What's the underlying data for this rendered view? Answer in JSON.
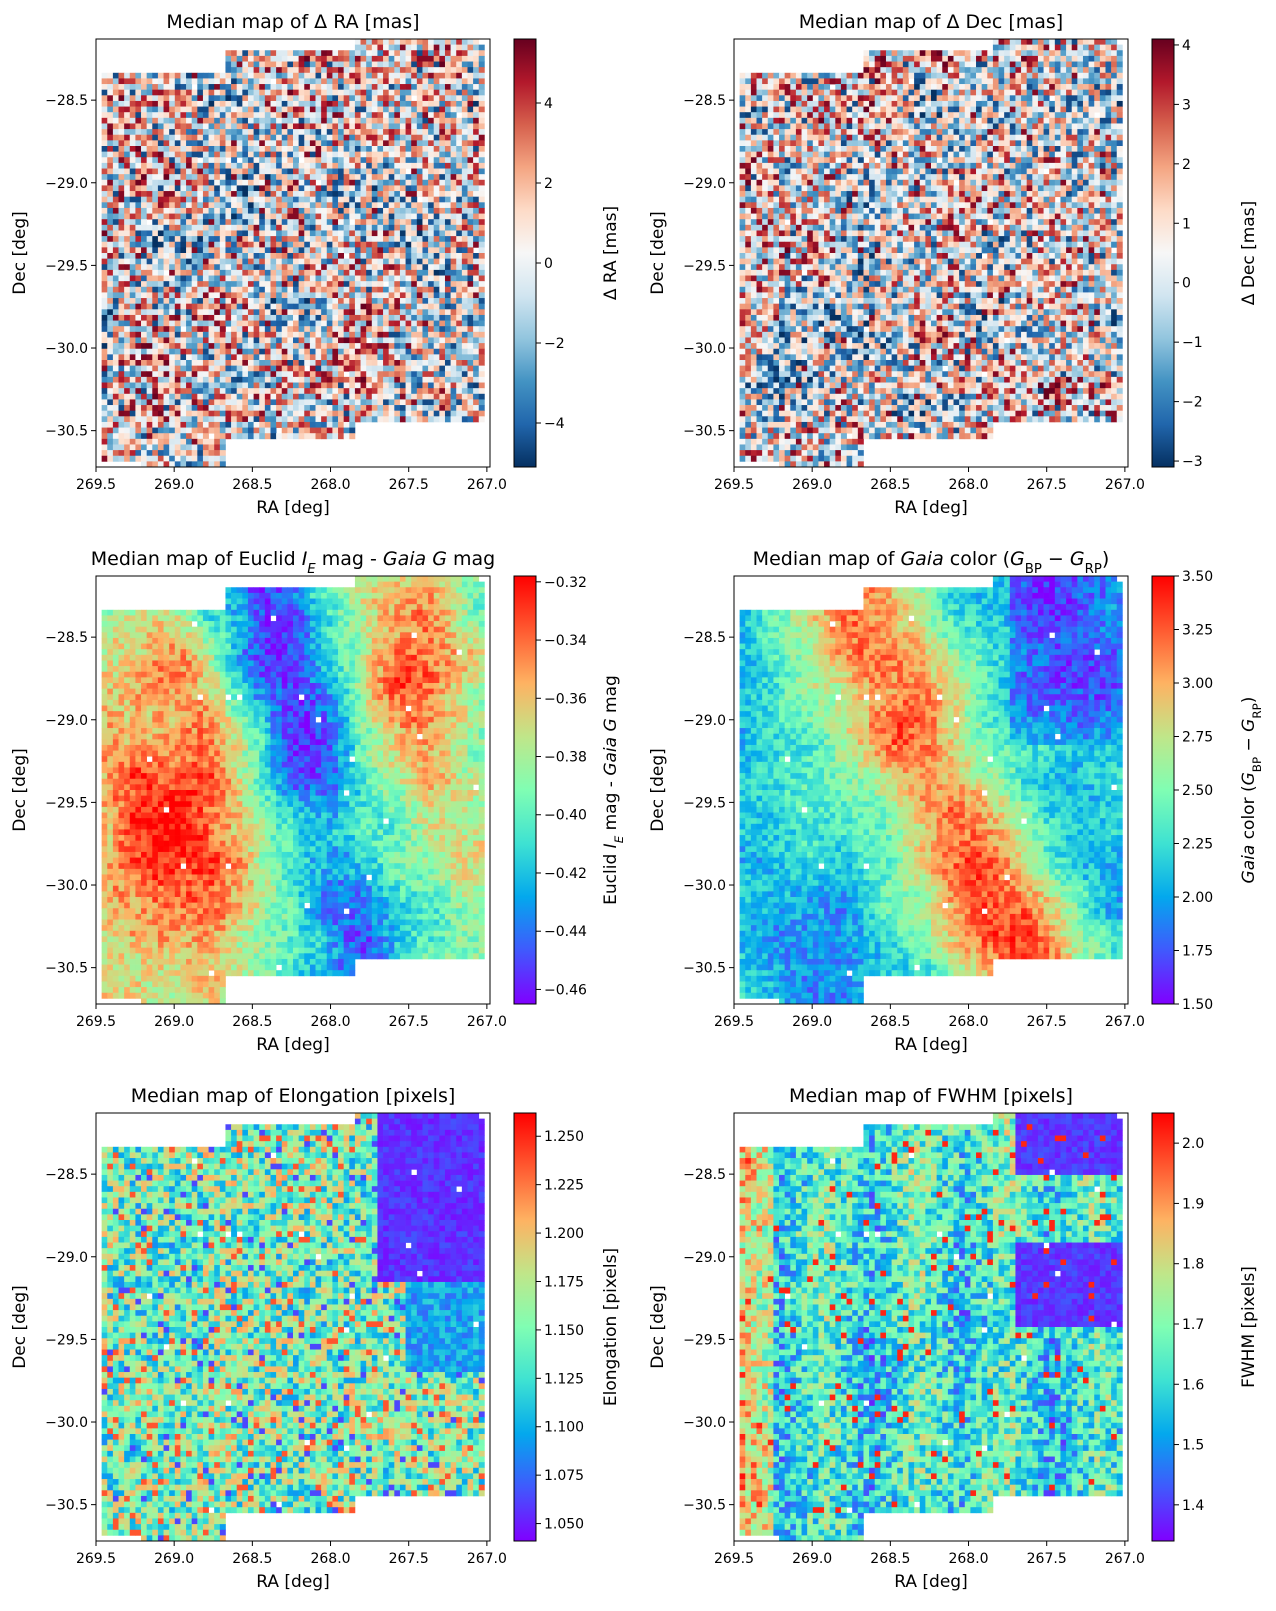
{
  "panels": [
    {
      "id": "dra",
      "title": [
        "Median map of Δ RA [mas]"
      ],
      "cbar_label": [
        "Δ RA [mas]"
      ],
      "cmap": "RdBu_r",
      "vmin": -5.1,
      "vmax": 5.6,
      "cbar_ticks": [
        -4,
        -2,
        0,
        2,
        4
      ],
      "cbar_tick_labels": [
        "−4",
        "−2",
        "0",
        "2",
        "4"
      ],
      "pattern": "noise"
    },
    {
      "id": "ddec",
      "title": [
        "Median map of Δ Dec [mas]"
      ],
      "cbar_label": [
        "Δ Dec [mas]"
      ],
      "cmap": "RdBu_r",
      "vmin": -3.1,
      "vmax": 4.1,
      "cbar_ticks": [
        -3,
        -2,
        -1,
        0,
        1,
        2,
        3,
        4
      ],
      "cbar_tick_labels": [
        "−3",
        "−2",
        "−1",
        "0",
        "1",
        "2",
        "3",
        "4"
      ],
      "pattern": "noise"
    },
    {
      "id": "mag",
      "title": [
        {
          "t": "Median map of Euclid "
        },
        {
          "t": "I",
          "i": true
        },
        {
          "t": "E",
          "i": true,
          "sub": true
        },
        {
          "t": " mag - "
        },
        {
          "t": "Gaia G",
          "i": true
        },
        {
          "t": " mag"
        }
      ],
      "cbar_label": [
        {
          "t": "Euclid "
        },
        {
          "t": "I",
          "i": true
        },
        {
          "t": "E",
          "i": true,
          "sub": true
        },
        {
          "t": " mag - "
        },
        {
          "t": "Gaia G",
          "i": true
        },
        {
          "t": " mag"
        }
      ],
      "cmap": "rainbow",
      "vmin": -0.465,
      "vmax": -0.318,
      "cbar_ticks": [
        -0.46,
        -0.44,
        -0.42,
        -0.4,
        -0.38,
        -0.36,
        -0.34,
        -0.32
      ],
      "cbar_tick_labels": [
        "−0.46",
        "−0.44",
        "−0.42",
        "−0.40",
        "−0.38",
        "−0.36",
        "−0.34",
        "−0.32"
      ],
      "pattern": "mag"
    },
    {
      "id": "color",
      "title": [
        {
          "t": "Median map of "
        },
        {
          "t": "Gaia",
          "i": true
        },
        {
          "t": " color ("
        },
        {
          "t": "G",
          "i": true
        },
        {
          "t": "BP",
          "sub": true
        },
        {
          "t": " − "
        },
        {
          "t": "G",
          "i": true
        },
        {
          "t": "RP",
          "sub": true
        },
        {
          "t": ")"
        }
      ],
      "cbar_label": [
        {
          "t": "Gaia",
          "i": true
        },
        {
          "t": " color ("
        },
        {
          "t": "G",
          "i": true
        },
        {
          "t": "BP",
          "sub": true
        },
        {
          "t": " − "
        },
        {
          "t": "G",
          "i": true
        },
        {
          "t": "RP",
          "sub": true
        },
        {
          "t": ")"
        }
      ],
      "cmap": "rainbow",
      "vmin": 1.5,
      "vmax": 3.5,
      "cbar_ticks": [
        1.5,
        1.75,
        2.0,
        2.25,
        2.5,
        2.75,
        3.0,
        3.25,
        3.5
      ],
      "cbar_tick_labels": [
        "1.50",
        "1.75",
        "2.00",
        "2.25",
        "2.50",
        "2.75",
        "3.00",
        "3.25",
        "3.50"
      ],
      "pattern": "color"
    },
    {
      "id": "elong",
      "title": [
        "Median map of Elongation [pixels]"
      ],
      "cbar_label": [
        "Elongation [pixels]"
      ],
      "cmap": "rainbow",
      "vmin": 1.041,
      "vmax": 1.262,
      "cbar_ticks": [
        1.05,
        1.075,
        1.1,
        1.125,
        1.15,
        1.175,
        1.2,
        1.225,
        1.25
      ],
      "cbar_tick_labels": [
        "1.050",
        "1.075",
        "1.100",
        "1.125",
        "1.150",
        "1.175",
        "1.200",
        "1.225",
        "1.250"
      ],
      "pattern": "elong"
    },
    {
      "id": "fwhm",
      "title": [
        "Median map of FWHM [pixels]"
      ],
      "cbar_label": [
        "FWHM [pixels]"
      ],
      "cmap": "rainbow",
      "vmin": 1.34,
      "vmax": 2.05,
      "cbar_ticks": [
        1.4,
        1.5,
        1.6,
        1.7,
        1.8,
        1.9,
        2.0
      ],
      "cbar_tick_labels": [
        "1.4",
        "1.5",
        "1.6",
        "1.7",
        "1.8",
        "1.9",
        "2.0"
      ],
      "pattern": "fwhm"
    }
  ],
  "axes": {
    "xlabel": "RA [deg]",
    "ylabel": "Dec [deg]",
    "xlim": [
      269.5,
      266.98
    ],
    "ylim": [
      -30.72,
      -28.13
    ],
    "xticks": [
      269.5,
      269.0,
      268.5,
      268.0,
      267.5,
      267.0
    ],
    "xtick_labels": [
      "269.5",
      "269.0",
      "268.5",
      "268.0",
      "267.5",
      "267.0"
    ],
    "yticks": [
      -28.5,
      -29.0,
      -29.5,
      -30.0,
      -30.5
    ],
    "ytick_labels": [
      "−28.5",
      "−29.0",
      "−29.5",
      "−30.0",
      "−30.5"
    ]
  },
  "chart_data": [
    {
      "type": "heatmap",
      "title": "Median map of Δ RA [mas]",
      "xlabel": "RA [deg]",
      "ylabel": "Dec [deg]",
      "colorbar_label": "Δ RA [mas]",
      "color_range": [
        -5.1,
        5.6
      ],
      "xlim": [
        269.5,
        266.98
      ],
      "ylim": [
        -30.72,
        -28.13
      ]
    },
    {
      "type": "heatmap",
      "title": "Median map of Δ Dec [mas]",
      "xlabel": "RA [deg]",
      "ylabel": "Dec [deg]",
      "colorbar_label": "Δ Dec [mas]",
      "color_range": [
        -3.1,
        4.1
      ],
      "xlim": [
        269.5,
        266.98
      ],
      "ylim": [
        -30.72,
        -28.13
      ]
    },
    {
      "type": "heatmap",
      "title": "Median map of Euclid IE mag - Gaia G mag",
      "xlabel": "RA [deg]",
      "ylabel": "Dec [deg]",
      "colorbar_label": "Euclid IE mag - Gaia G mag",
      "color_range": [
        -0.465,
        -0.318
      ],
      "xlim": [
        269.5,
        266.98
      ],
      "ylim": [
        -30.72,
        -28.13
      ]
    },
    {
      "type": "heatmap",
      "title": "Median map of Gaia color (GBP − GRP)",
      "xlabel": "RA [deg]",
      "ylabel": "Dec [deg]",
      "colorbar_label": "Gaia color (GBP − GRP)",
      "color_range": [
        1.5,
        3.5
      ],
      "xlim": [
        269.5,
        266.98
      ],
      "ylim": [
        -30.72,
        -28.13
      ]
    },
    {
      "type": "heatmap",
      "title": "Median map of Elongation [pixels]",
      "xlabel": "RA [deg]",
      "ylabel": "Dec [deg]",
      "colorbar_label": "Elongation [pixels]",
      "color_range": [
        1.041,
        1.262
      ],
      "xlim": [
        269.5,
        266.98
      ],
      "ylim": [
        -30.72,
        -28.13
      ]
    },
    {
      "type": "heatmap",
      "title": "Median map of FWHM [pixels]",
      "xlabel": "RA [deg]",
      "ylabel": "Dec [deg]",
      "colorbar_label": "FWHM [pixels]",
      "color_range": [
        1.34,
        2.05
      ],
      "xlim": [
        269.5,
        266.98
      ],
      "ylim": [
        -30.72,
        -28.13
      ]
    }
  ]
}
